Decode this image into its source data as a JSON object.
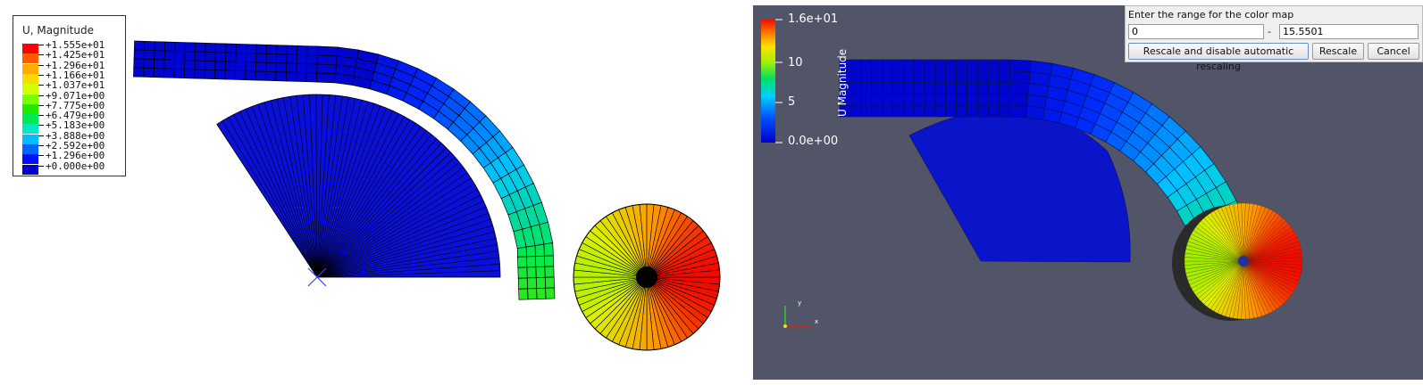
{
  "left_view": {
    "legend_title": "U, Magnitude",
    "legend_items": [
      {
        "label": "+1.555e+01",
        "color": "#ff0000"
      },
      {
        "label": "+1.425e+01",
        "color": "#ff5a00"
      },
      {
        "label": "+1.296e+01",
        "color": "#ffae00"
      },
      {
        "label": "+1.166e+01",
        "color": "#ffd800"
      },
      {
        "label": "+1.037e+01",
        "color": "#d2ff00"
      },
      {
        "label": "+9.071e+00",
        "color": "#7aff00"
      },
      {
        "label": "+7.775e+00",
        "color": "#22e800"
      },
      {
        "label": "+6.479e+00",
        "color": "#00e85a"
      },
      {
        "label": "+5.183e+00",
        "color": "#00e8c8"
      },
      {
        "label": "+3.888e+00",
        "color": "#00bcff"
      },
      {
        "label": "+2.592e+00",
        "color": "#0064ff"
      },
      {
        "label": "+1.296e+00",
        "color": "#0010ff"
      },
      {
        "label": "+0.000e+00",
        "color": "#0000c8"
      }
    ]
  },
  "right_view": {
    "colorbar_title": "U Magnitude",
    "colorbar_labels": [
      "1.6e+01",
      "10",
      "5",
      "0.0e+00"
    ],
    "axes_labels": {
      "x": "x",
      "y": "y"
    }
  },
  "dialog": {
    "title": "Enter the range for the color map",
    "min_value": "0",
    "separator": "-",
    "max_value": "15.5501",
    "rescale_disable_label": "Rescale and disable automatic rescaling",
    "rescale_label": "Rescale",
    "cancel_label": "Cancel"
  }
}
